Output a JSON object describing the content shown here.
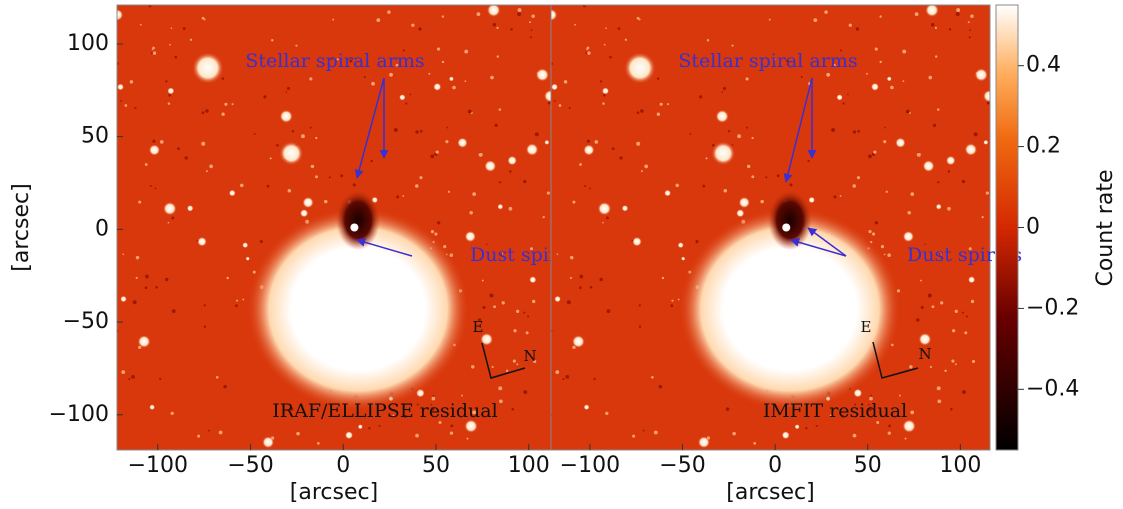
{
  "chart_data": [
    {
      "type": "image",
      "xlabel": "[arcsec]",
      "ylabel": "[arcsec]",
      "xlim": [
        -122,
        112
      ],
      "ylim": [
        -119,
        121
      ],
      "xticks": [
        {
          "value": -100,
          "label": "−100"
        },
        {
          "value": -50,
          "label": "−50"
        },
        0,
        50,
        100
      ],
      "yticks": [
        {
          "value": -100,
          "label": "−100"
        },
        {
          "value": -50,
          "label": "−50"
        },
        0,
        50,
        100
      ],
      "annotations": [
        "Stellar spiral arms",
        "Dust spirals",
        "IRAF/ELLIPSE residual",
        "E",
        "N"
      ]
    },
    {
      "type": "image",
      "xlabel": "[arcsec]",
      "xlim": [
        -121,
        116
      ],
      "ylim": [
        -119,
        121
      ],
      "xticks": [
        {
          "value": -100,
          "label": "−100"
        },
        {
          "value": -50,
          "label": "−50"
        },
        0,
        50,
        100
      ],
      "annotations": [
        "Stellar spiral arms",
        "Dust spirals",
        "IMFIT residual",
        "E",
        "N"
      ]
    },
    {
      "type": "colorbar",
      "label": "Count rate",
      "clim": [
        -0.55,
        0.55
      ],
      "ticks": [
        {
          "value": -0.4,
          "label": "−0.4"
        },
        {
          "value": -0.2,
          "label": "−0.2"
        },
        0.0,
        0.2,
        0.4
      ]
    }
  ]
}
